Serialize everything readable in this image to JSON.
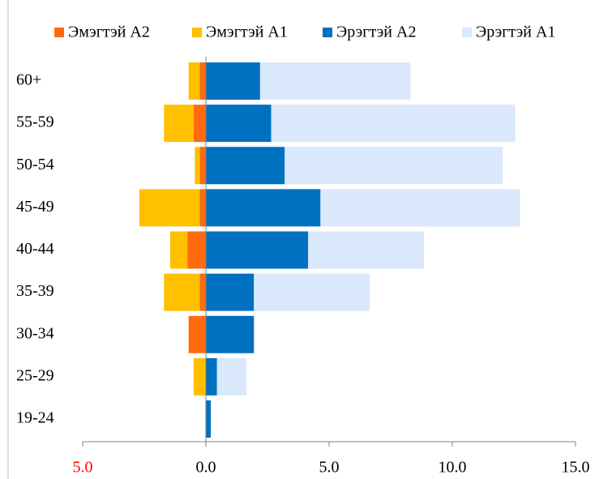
{
  "chart_data": {
    "type": "bar",
    "orientation": "horizontal",
    "stacked": true,
    "categories": [
      "19-24",
      "25-29",
      "30-34",
      "35-39",
      "40-44",
      "45-49",
      "50-54",
      "55-59",
      "60+"
    ],
    "series": [
      {
        "name": "Эмэгтэй A2",
        "color": "#ff6a10",
        "values": [
          0,
          0,
          -0.7,
          -0.25,
          -0.75,
          -0.25,
          -0.25,
          -0.5,
          -0.25
        ]
      },
      {
        "name": "Эмэгтэй A1",
        "color": "#ffc000",
        "values": [
          0,
          -0.5,
          0,
          -1.45,
          -0.7,
          -2.45,
          -0.2,
          -1.2,
          -0.45
        ]
      },
      {
        "name": "Эрэгтэй A2",
        "color": "#0070c0",
        "values": [
          0.2,
          0.45,
          1.95,
          1.95,
          4.15,
          4.65,
          3.2,
          2.65,
          2.2
        ]
      },
      {
        "name": "Эрэгтэй A1",
        "color": "#dae8fc",
        "values": [
          0,
          1.2,
          0,
          4.7,
          4.7,
          8.1,
          8.85,
          9.9,
          6.1
        ]
      }
    ],
    "xlim": [
      -5,
      15
    ],
    "xticks": [
      {
        "value": -5,
        "label": "5.0"
      },
      {
        "value": 0,
        "label": "0.0"
      },
      {
        "value": 5,
        "label": "5.0"
      },
      {
        "value": 10,
        "label": "10.0"
      },
      {
        "value": 15,
        "label": "15.0"
      }
    ],
    "xtick_colors": [
      "#ff0000",
      "#000000",
      "#000000",
      "#000000",
      "#000000"
    ],
    "legend": "top"
  }
}
